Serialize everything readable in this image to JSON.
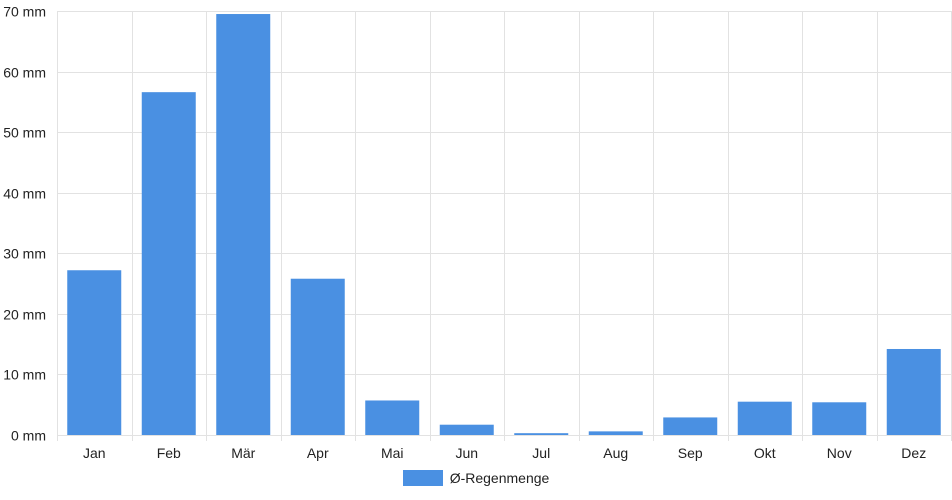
{
  "chart_data": {
    "type": "bar",
    "categories": [
      "Jan",
      "Feb",
      "Mär",
      "Apr",
      "Mai",
      "Jun",
      "Jul",
      "Aug",
      "Sep",
      "Okt",
      "Nov",
      "Dez"
    ],
    "series": [
      {
        "name": "Ø-Regenmenge",
        "values": [
          27.2,
          56.6,
          69.5,
          25.8,
          5.7,
          1.7,
          0.3,
          0.6,
          2.9,
          5.5,
          5.4,
          14.2
        ]
      }
    ],
    "ylim": [
      0,
      70
    ],
    "yticks": [
      0,
      10,
      20,
      30,
      40,
      50,
      60,
      70
    ],
    "y_unit": "mm",
    "grid": true,
    "legend_position": "bottom",
    "colors": {
      "bar": "#4a90e2",
      "grid": "#e2e2e2"
    }
  }
}
